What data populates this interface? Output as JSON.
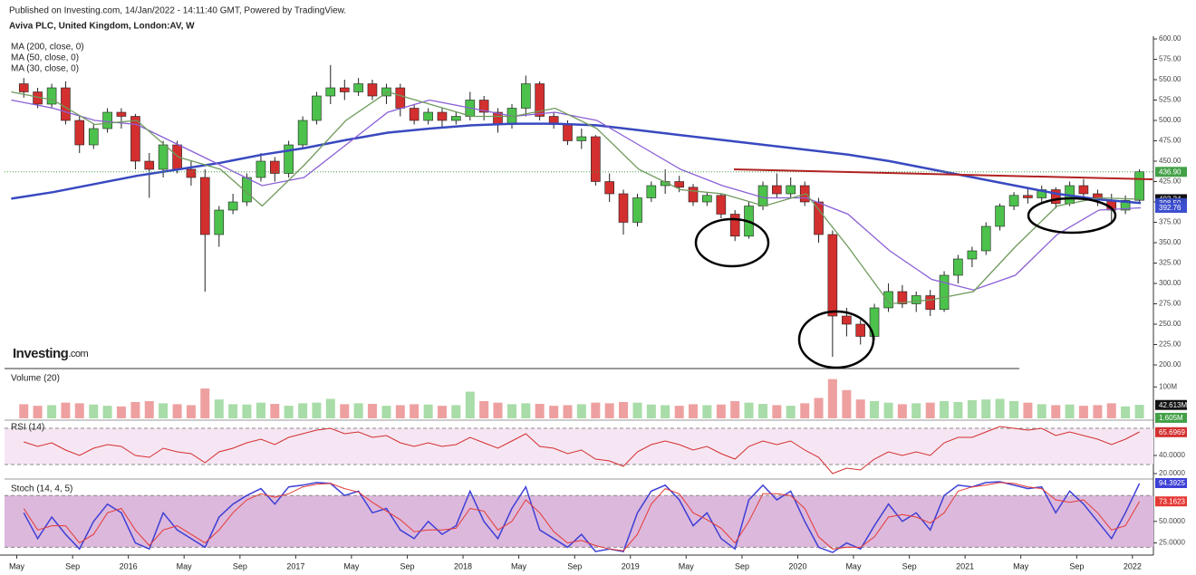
{
  "header": {
    "published": "Published on Investing.com, 14/Jan/2022 - 14:11:40 GMT, Powered by TradingView.",
    "symbol": "Aviva PLC, United Kingdom, London:AV, W"
  },
  "logo": {
    "brand": "Investing",
    "suffix": ".com"
  },
  "chart_data": {
    "type": "candlestick",
    "xlim": [
      2015.26,
      2022.12
    ],
    "xticks": [
      {
        "value": 2015.333,
        "label": "May"
      },
      {
        "value": 2015.667,
        "label": "Sep"
      },
      2016,
      {
        "value": 2016.333,
        "label": "May"
      },
      {
        "value": 2016.667,
        "label": "Sep"
      },
      2017,
      {
        "value": 2017.333,
        "label": "May"
      },
      {
        "value": 2017.667,
        "label": "Sep"
      },
      2018,
      {
        "value": 2018.333,
        "label": "May"
      },
      {
        "value": 2018.667,
        "label": "Sep"
      },
      2019,
      {
        "value": 2019.333,
        "label": "May"
      },
      {
        "value": 2019.667,
        "label": "Sep"
      },
      2020,
      {
        "value": 2020.333,
        "label": "May"
      },
      {
        "value": 2020.667,
        "label": "Sep"
      },
      2021,
      {
        "value": 2021.333,
        "label": "May"
      },
      {
        "value": 2021.667,
        "label": "Sep"
      },
      2022
    ],
    "ylim": [
      200,
      600
    ],
    "yticks": [
      {
        "value": 200,
        "label": "200.00"
      },
      {
        "value": 225,
        "label": "225.00"
      },
      {
        "value": 250,
        "label": "250.00"
      },
      {
        "value": 275,
        "label": "275.00"
      },
      {
        "value": 300,
        "label": "300.00"
      },
      {
        "value": 325,
        "label": "325.00"
      },
      {
        "value": 350,
        "label": "350.00"
      },
      {
        "value": 375,
        "label": "375.00"
      },
      {
        "value": 400,
        "label": "400.00"
      },
      {
        "value": 425,
        "label": "425.00"
      },
      {
        "value": 450,
        "label": "450.00"
      },
      {
        "value": 475,
        "label": "475.00"
      },
      {
        "value": 500,
        "label": "500.00"
      },
      {
        "value": 525,
        "label": "525.00"
      },
      {
        "value": 550,
        "label": "550.00"
      },
      {
        "value": 575,
        "label": "575.00"
      },
      {
        "value": 600,
        "label": "600.00"
      }
    ],
    "up_color": "#4cc24c",
    "down_color": "#d32f2f",
    "candles": {
      "x": [
        2015.375,
        2015.458,
        2015.542,
        2015.625,
        2015.708,
        2015.792,
        2015.875,
        2015.958,
        2016.042,
        2016.125,
        2016.208,
        2016.292,
        2016.375,
        2016.458,
        2016.542,
        2016.625,
        2016.708,
        2016.792,
        2016.875,
        2016.958,
        2017.042,
        2017.125,
        2017.208,
        2017.292,
        2017.375,
        2017.458,
        2017.542,
        2017.625,
        2017.708,
        2017.792,
        2017.875,
        2017.958,
        2018.042,
        2018.125,
        2018.208,
        2018.292,
        2018.375,
        2018.458,
        2018.542,
        2018.625,
        2018.708,
        2018.792,
        2018.875,
        2018.958,
        2019.042,
        2019.125,
        2019.208,
        2019.292,
        2019.375,
        2019.458,
        2019.542,
        2019.625,
        2019.708,
        2019.792,
        2019.875,
        2019.958,
        2020.042,
        2020.125,
        2020.208,
        2020.292,
        2020.375,
        2020.458,
        2020.542,
        2020.625,
        2020.708,
        2020.792,
        2020.875,
        2020.958,
        2021.042,
        2021.125,
        2021.208,
        2021.292,
        2021.375,
        2021.458,
        2021.542,
        2021.625,
        2021.708,
        2021.792,
        2021.875,
        2021.958,
        2022.042
      ],
      "open": [
        545,
        535,
        520,
        540,
        500,
        470,
        490,
        510,
        505,
        450,
        440,
        470,
        440,
        430,
        360,
        390,
        400,
        430,
        450,
        435,
        470,
        500,
        530,
        540,
        535,
        545,
        530,
        540,
        515,
        500,
        510,
        500,
        505,
        525,
        510,
        495,
        515,
        545,
        505,
        495,
        475,
        480,
        425,
        410,
        375,
        405,
        420,
        425,
        418,
        400,
        408,
        385,
        358,
        395,
        420,
        410,
        420,
        400,
        360,
        260,
        250,
        235,
        270,
        290,
        275,
        285,
        268,
        310,
        330,
        340,
        370,
        395,
        408,
        405,
        415,
        398,
        420,
        410,
        402,
        390,
        402
      ],
      "high": [
        552,
        540,
        545,
        548,
        505,
        495,
        515,
        515,
        508,
        460,
        475,
        475,
        450,
        440,
        395,
        410,
        435,
        460,
        455,
        475,
        505,
        535,
        568,
        550,
        552,
        550,
        545,
        545,
        520,
        515,
        515,
        510,
        535,
        530,
        515,
        520,
        555,
        548,
        510,
        500,
        490,
        482,
        435,
        415,
        410,
        425,
        440,
        432,
        422,
        412,
        410,
        390,
        400,
        425,
        435,
        430,
        425,
        405,
        365,
        270,
        255,
        275,
        300,
        298,
        290,
        292,
        315,
        335,
        345,
        375,
        398,
        412,
        418,
        420,
        418,
        425,
        428,
        415,
        410,
        408,
        440
      ],
      "low": [
        528,
        515,
        515,
        495,
        460,
        465,
        485,
        490,
        440,
        405,
        430,
        435,
        420,
        290,
        345,
        385,
        395,
        425,
        425,
        430,
        465,
        495,
        520,
        525,
        530,
        525,
        520,
        505,
        495,
        495,
        490,
        495,
        500,
        500,
        485,
        490,
        505,
        500,
        490,
        470,
        465,
        420,
        400,
        360,
        370,
        400,
        410,
        412,
        395,
        395,
        380,
        352,
        355,
        390,
        405,
        405,
        395,
        350,
        210,
        235,
        225,
        230,
        265,
        270,
        265,
        260,
        265,
        300,
        320,
        335,
        365,
        390,
        398,
        400,
        392,
        395,
        402,
        395,
        375,
        385,
        400
      ],
      "close": [
        535,
        520,
        540,
        500,
        470,
        490,
        510,
        505,
        450,
        440,
        470,
        440,
        430,
        360,
        390,
        400,
        430,
        450,
        435,
        470,
        500,
        530,
        540,
        535,
        545,
        530,
        540,
        515,
        500,
        510,
        500,
        505,
        525,
        510,
        495,
        515,
        545,
        505,
        495,
        475,
        480,
        425,
        410,
        375,
        405,
        420,
        425,
        418,
        400,
        408,
        385,
        358,
        395,
        420,
        410,
        420,
        400,
        360,
        260,
        250,
        235,
        270,
        290,
        275,
        285,
        268,
        310,
        330,
        340,
        370,
        395,
        408,
        405,
        415,
        398,
        420,
        410,
        402,
        390,
        402,
        437
      ]
    },
    "ma_x": [
      2015.3,
      2015.55,
      2015.8,
      2016.05,
      2016.3,
      2016.55,
      2016.8,
      2017.05,
      2017.3,
      2017.55,
      2017.8,
      2018.05,
      2018.3,
      2018.55,
      2018.8,
      2019.05,
      2019.3,
      2019.55,
      2019.8,
      2020.05,
      2020.3,
      2020.55,
      2020.8,
      2021.05,
      2021.3,
      2021.55,
      2021.8,
      2022.05
    ],
    "moving_averages": [
      {
        "name": "MA (200, close, 0)",
        "color": "#3949c0",
        "values": [
          404,
          412,
          422,
          432,
          440,
          448,
          458,
          466,
          476,
          485,
          490,
          494,
          496,
          496,
          494,
          488,
          482,
          476,
          470,
          464,
          458,
          450,
          440,
          430,
          420,
          410,
          403,
          398.5
        ]
      },
      {
        "name": "MA (50, close, 0)",
        "color": "#8a5fd6",
        "values": [
          525,
          515,
          500,
          495,
          470,
          445,
          420,
          430,
          470,
          510,
          525,
          515,
          505,
          510,
          500,
          470,
          440,
          420,
          405,
          405,
          385,
          340,
          305,
          292,
          310,
          360,
          390,
          392.76
        ]
      },
      {
        "name": "MA (30, close, 0)",
        "color": "#6f9a5c",
        "values": [
          535,
          525,
          495,
          500,
          455,
          440,
          395,
          445,
          500,
          535,
          520,
          505,
          505,
          515,
          490,
          440,
          415,
          410,
          395,
          410,
          345,
          275,
          280,
          290,
          345,
          395,
          405,
          403.34
        ]
      }
    ],
    "price_labels": [
      {
        "value": 436.9,
        "label": "436.90",
        "color": "#43a047",
        "line": true
      },
      {
        "value": 403.34,
        "label": "403.34",
        "color": "#111111"
      },
      {
        "value": 398.5,
        "label": "398.50",
        "color": "#3949c0"
      },
      {
        "value": 392.76,
        "label": "392.76",
        "color": "#3d4fd0"
      }
    ],
    "volume": {
      "title": "Volume (20)",
      "ylim": [
        0,
        150
      ],
      "yticks": [
        {
          "value": 100,
          "label": "100M"
        }
      ],
      "values": [
        45,
        40,
        42,
        50,
        48,
        44,
        40,
        38,
        52,
        55,
        48,
        45,
        42,
        95,
        60,
        45,
        44,
        50,
        46,
        40,
        48,
        50,
        62,
        45,
        48,
        46,
        40,
        42,
        45,
        44,
        40,
        42,
        85,
        55,
        50,
        45,
        48,
        46,
        40,
        42,
        45,
        50,
        48,
        52,
        50,
        44,
        42,
        40,
        45,
        42,
        44,
        55,
        50,
        46,
        42,
        40,
        48,
        65,
        125,
        90,
        60,
        55,
        50,
        45,
        48,
        50,
        55,
        52,
        58,
        60,
        62,
        55,
        50,
        45,
        42,
        44,
        40,
        42,
        48,
        38,
        43
      ],
      "labels": [
        {
          "value": 42.613,
          "label": "42.613M",
          "color": "#111111"
        },
        {
          "value": 1.605,
          "label": "1.605M",
          "color": "#43a047"
        }
      ]
    },
    "rsi": {
      "title": "RSI (14)",
      "ylim": [
        16,
        77
      ],
      "yticks": [
        {
          "value": 20,
          "label": "20.0000"
        },
        {
          "value": 40,
          "label": "40.0000"
        }
      ],
      "bands": [
        30,
        70
      ],
      "color": "#d32f2f",
      "values": [
        55,
        50,
        54,
        46,
        40,
        48,
        52,
        50,
        40,
        38,
        48,
        44,
        42,
        32,
        44,
        48,
        54,
        58,
        52,
        60,
        64,
        68,
        70,
        64,
        66,
        60,
        62,
        54,
        50,
        54,
        50,
        52,
        60,
        54,
        48,
        56,
        64,
        50,
        48,
        42,
        46,
        36,
        34,
        28,
        44,
        52,
        56,
        52,
        46,
        50,
        42,
        36,
        50,
        56,
        52,
        56,
        46,
        38,
        20,
        26,
        24,
        36,
        44,
        40,
        44,
        40,
        54,
        60,
        60,
        66,
        72,
        70,
        68,
        70,
        62,
        66,
        62,
        58,
        52,
        58,
        66
      ],
      "labels": [
        {
          "value": 65.6969,
          "label": "65.6969",
          "color": "#d32f2f"
        }
      ]
    },
    "stoch": {
      "title": "Stoch (14, 4, 5)",
      "ylim": [
        12,
        97
      ],
      "yticks": [
        {
          "value": 25,
          "label": "25.0000"
        },
        {
          "value": 50,
          "label": "50.0000"
        }
      ],
      "bands": [
        20,
        80
      ],
      "series": [
        {
          "color": "#3d3fd6",
          "values": [
            60,
            30,
            55,
            35,
            18,
            50,
            70,
            60,
            25,
            18,
            60,
            40,
            30,
            20,
            55,
            70,
            80,
            88,
            70,
            90,
            92,
            95,
            94,
            80,
            85,
            60,
            65,
            40,
            30,
            50,
            35,
            45,
            85,
            50,
            30,
            65,
            90,
            40,
            30,
            20,
            35,
            15,
            18,
            15,
            60,
            85,
            92,
            75,
            45,
            60,
            30,
            18,
            75,
            92,
            75,
            85,
            50,
            20,
            14,
            25,
            18,
            45,
            70,
            50,
            60,
            40,
            80,
            92,
            90,
            95,
            96,
            92,
            88,
            90,
            60,
            85,
            70,
            50,
            30,
            60,
            94
          ]
        },
        {
          "color": "#e53935",
          "values": [
            65,
            40,
            45,
            45,
            25,
            35,
            60,
            65,
            40,
            22,
            40,
            45,
            35,
            25,
            40,
            60,
            75,
            82,
            78,
            82,
            90,
            93,
            94,
            88,
            84,
            72,
            62,
            52,
            38,
            40,
            40,
            42,
            65,
            62,
            40,
            50,
            75,
            60,
            38,
            25,
            28,
            22,
            18,
            16,
            35,
            70,
            88,
            82,
            60,
            52,
            42,
            25,
            50,
            82,
            82,
            80,
            65,
            32,
            18,
            20,
            20,
            32,
            55,
            58,
            55,
            48,
            60,
            85,
            90,
            92,
            95,
            94,
            90,
            88,
            75,
            72,
            75,
            60,
            40,
            45,
            73
          ]
        }
      ],
      "labels": [
        {
          "value": 94.3925,
          "label": "94.3925",
          "color": "#3d3fd6"
        },
        {
          "value": 73.1623,
          "label": "73.1623",
          "color": "#e53935"
        }
      ]
    }
  }
}
